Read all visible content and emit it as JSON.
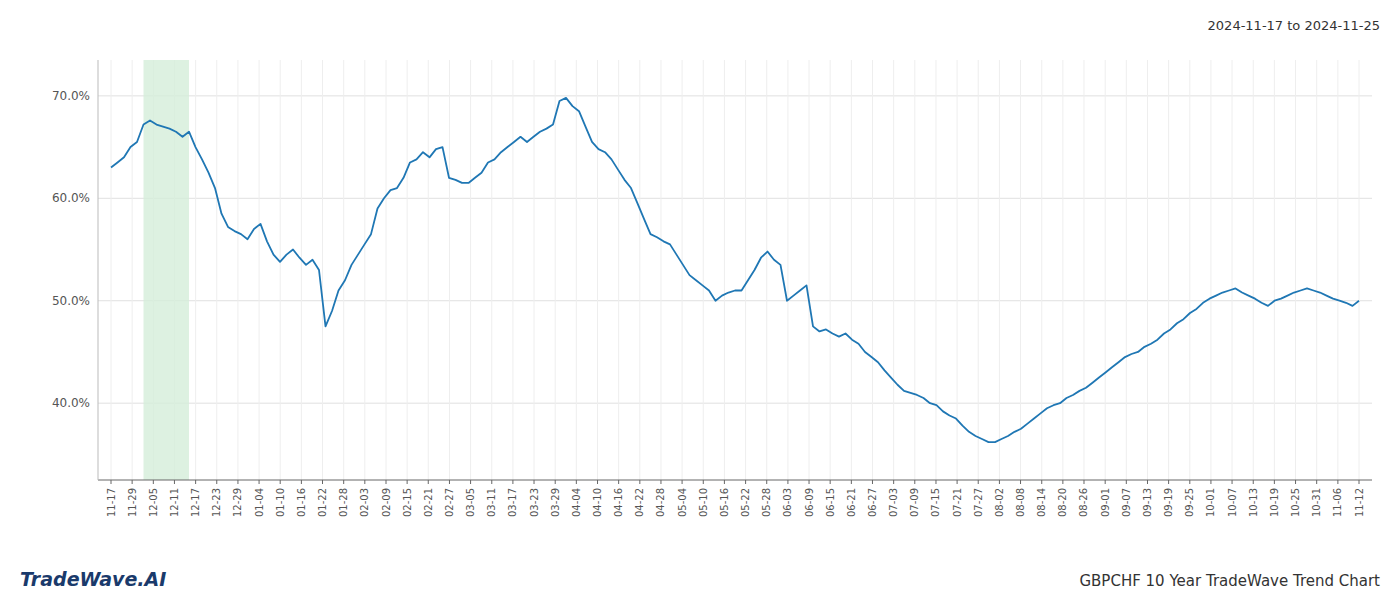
{
  "chart_data": {
    "type": "line",
    "title": "GBPCHF 10 Year TradeWave Trend Chart",
    "subtitle": "2024-11-17 to 2024-11-25",
    "annotations": [
      "TradeWave.AI"
    ],
    "color": "#1f77b4",
    "grid": true,
    "x": [
      0,
      1,
      2,
      3,
      4,
      5,
      6,
      7,
      8,
      9,
      10,
      11,
      12,
      13,
      14,
      15,
      16,
      17,
      18,
      19,
      20,
      21,
      22,
      23,
      24,
      25,
      26,
      27,
      28,
      29,
      30,
      31,
      32,
      33,
      34,
      35,
      36,
      37,
      38,
      39,
      40,
      41,
      42,
      43,
      44,
      45,
      46,
      47,
      48,
      49,
      50,
      51,
      52,
      53,
      54,
      55,
      56,
      57,
      58,
      59,
      60,
      61,
      62,
      63,
      64,
      65,
      66,
      67,
      68,
      69,
      70,
      71,
      72,
      73,
      74,
      75,
      76,
      77,
      78,
      79,
      80,
      81,
      82,
      83,
      84,
      85,
      86,
      87,
      88,
      89,
      90,
      91,
      92,
      93,
      94,
      95,
      96,
      97,
      98,
      99,
      100,
      101,
      102,
      103,
      104,
      105,
      106,
      107,
      108,
      109,
      110,
      111,
      112,
      113,
      114,
      115,
      116,
      117,
      118,
      119,
      120,
      121,
      122,
      123,
      124,
      125,
      126,
      127,
      128,
      129,
      130,
      131,
      132,
      133,
      134,
      135,
      136,
      137,
      138,
      139,
      140,
      141,
      142,
      143,
      144,
      145,
      146,
      147,
      148,
      149,
      150,
      151,
      152,
      153,
      154,
      155,
      156,
      157,
      158,
      159,
      160,
      161,
      162,
      163,
      164,
      165,
      166,
      167,
      168,
      169,
      170,
      171,
      172,
      173,
      174,
      175,
      176,
      177,
      178,
      179,
      180,
      181,
      182,
      183,
      184,
      185,
      186,
      187,
      188,
      189,
      190,
      191,
      192
    ],
    "values": [
      0.63,
      0.635,
      0.64,
      0.65,
      0.655,
      0.672,
      0.676,
      0.672,
      0.67,
      0.668,
      0.665,
      0.66,
      0.665,
      0.65,
      0.638,
      0.625,
      0.61,
      0.585,
      0.572,
      0.568,
      0.565,
      0.56,
      0.57,
      0.575,
      0.558,
      0.545,
      0.538,
      0.545,
      0.55,
      0.542,
      0.535,
      0.54,
      0.53,
      0.475,
      0.49,
      0.51,
      0.52,
      0.535,
      0.545,
      0.555,
      0.565,
      0.59,
      0.6,
      0.608,
      0.61,
      0.62,
      0.635,
      0.638,
      0.645,
      0.64,
      0.648,
      0.65,
      0.62,
      0.618,
      0.615,
      0.615,
      0.62,
      0.625,
      0.635,
      0.638,
      0.645,
      0.65,
      0.655,
      0.66,
      0.655,
      0.66,
      0.665,
      0.668,
      0.672,
      0.695,
      0.698,
      0.69,
      0.685,
      0.67,
      0.655,
      0.648,
      0.645,
      0.638,
      0.628,
      0.618,
      0.61,
      0.595,
      0.58,
      0.565,
      0.562,
      0.558,
      0.555,
      0.545,
      0.535,
      0.525,
      0.52,
      0.515,
      0.51,
      0.5,
      0.505,
      0.508,
      0.51,
      0.51,
      0.52,
      0.53,
      0.542,
      0.548,
      0.54,
      0.535,
      0.5,
      0.505,
      0.51,
      0.515,
      0.475,
      0.47,
      0.472,
      0.468,
      0.465,
      0.468,
      0.462,
      0.458,
      0.45,
      0.445,
      0.44,
      0.432,
      0.425,
      0.418,
      0.412,
      0.41,
      0.408,
      0.405,
      0.4,
      0.398,
      0.392,
      0.388,
      0.385,
      0.378,
      0.372,
      0.368,
      0.365,
      0.362,
      0.362,
      0.365,
      0.368,
      0.372,
      0.375,
      0.38,
      0.385,
      0.39,
      0.395,
      0.398,
      0.4,
      0.405,
      0.408,
      0.412,
      0.415,
      0.42,
      0.425,
      0.43,
      0.435,
      0.44,
      0.445,
      0.448,
      0.45,
      0.455,
      0.458,
      0.462,
      0.468,
      0.472,
      0.478,
      0.482,
      0.488,
      0.492,
      0.498,
      0.502,
      0.505,
      0.508,
      0.51,
      0.512,
      0.508,
      0.505,
      0.502,
      0.498,
      0.495,
      0.5,
      0.502,
      0.505,
      0.508,
      0.51,
      0.512,
      0.51,
      0.508,
      0.505,
      0.502,
      0.5,
      0.498,
      0.495,
      0.5
    ],
    "highlight": {
      "x": [
        5,
        12
      ],
      "color": "#d4edda"
    },
    "xlim": [
      -2,
      194
    ],
    "xticks": [
      {
        "value": 0,
        "label": "11-17"
      },
      {
        "value": 3.25,
        "label": "11-29"
      },
      {
        "value": 6.51,
        "label": "12-05"
      },
      {
        "value": 9.76,
        "label": "12-11"
      },
      {
        "value": 13.02,
        "label": "12-17"
      },
      {
        "value": 16.27,
        "label": "12-23"
      },
      {
        "value": 19.53,
        "label": "12-29"
      },
      {
        "value": 22.78,
        "label": "01-04"
      },
      {
        "value": 26.03,
        "label": "01-10"
      },
      {
        "value": 29.29,
        "label": "01-16"
      },
      {
        "value": 32.54,
        "label": "01-22"
      },
      {
        "value": 35.8,
        "label": "01-28"
      },
      {
        "value": 39.05,
        "label": "02-03"
      },
      {
        "value": 42.31,
        "label": "02-09"
      },
      {
        "value": 45.56,
        "label": "02-15"
      },
      {
        "value": 48.81,
        "label": "02-21"
      },
      {
        "value": 52.07,
        "label": "02-27"
      },
      {
        "value": 55.32,
        "label": "03-05"
      },
      {
        "value": 58.58,
        "label": "03-11"
      },
      {
        "value": 61.83,
        "label": "03-17"
      },
      {
        "value": 65.08,
        "label": "03-23"
      },
      {
        "value": 68.34,
        "label": "03-29"
      },
      {
        "value": 71.59,
        "label": "04-04"
      },
      {
        "value": 74.85,
        "label": "04-10"
      },
      {
        "value": 78.1,
        "label": "04-16"
      },
      {
        "value": 81.36,
        "label": "04-22"
      },
      {
        "value": 84.61,
        "label": "04-28"
      },
      {
        "value": 87.86,
        "label": "05-04"
      },
      {
        "value": 91.12,
        "label": "05-10"
      },
      {
        "value": 94.37,
        "label": "05-16"
      },
      {
        "value": 97.63,
        "label": "05-22"
      },
      {
        "value": 100.88,
        "label": "05-28"
      },
      {
        "value": 104.14,
        "label": "06-03"
      },
      {
        "value": 107.39,
        "label": "06-09"
      },
      {
        "value": 110.64,
        "label": "06-15"
      },
      {
        "value": 113.9,
        "label": "06-21"
      },
      {
        "value": 117.15,
        "label": "06-27"
      },
      {
        "value": 120.41,
        "label": "07-03"
      },
      {
        "value": 123.66,
        "label": "07-09"
      },
      {
        "value": 126.92,
        "label": "07-15"
      },
      {
        "value": 130.17,
        "label": "07-21"
      },
      {
        "value": 133.42,
        "label": "07-27"
      },
      {
        "value": 136.68,
        "label": "08-02"
      },
      {
        "value": 139.93,
        "label": "08-08"
      },
      {
        "value": 143.19,
        "label": "08-14"
      },
      {
        "value": 146.44,
        "label": "08-20"
      },
      {
        "value": 149.69,
        "label": "08-26"
      },
      {
        "value": 152.95,
        "label": "09-01"
      },
      {
        "value": 156.2,
        "label": "09-07"
      },
      {
        "value": 159.46,
        "label": "09-13"
      },
      {
        "value": 162.71,
        "label": "09-19"
      },
      {
        "value": 165.97,
        "label": "09-25"
      },
      {
        "value": 169.22,
        "label": "10-01"
      },
      {
        "value": 172.47,
        "label": "10-07"
      },
      {
        "value": 175.73,
        "label": "10-13"
      },
      {
        "value": 178.98,
        "label": "10-19"
      },
      {
        "value": 182.24,
        "label": "10-25"
      },
      {
        "value": 185.49,
        "label": "10-31"
      },
      {
        "value": 188.75,
        "label": "11-06"
      },
      {
        "value": 192,
        "label": "11-12"
      }
    ],
    "ylim": [
      0.325,
      0.735
    ],
    "yticks": [
      {
        "value": 0.4,
        "label": "40.0%"
      },
      {
        "value": 0.5,
        "label": "50.0%"
      },
      {
        "value": 0.6,
        "label": "60.0%"
      },
      {
        "value": 0.7,
        "label": "70.0%"
      }
    ]
  }
}
